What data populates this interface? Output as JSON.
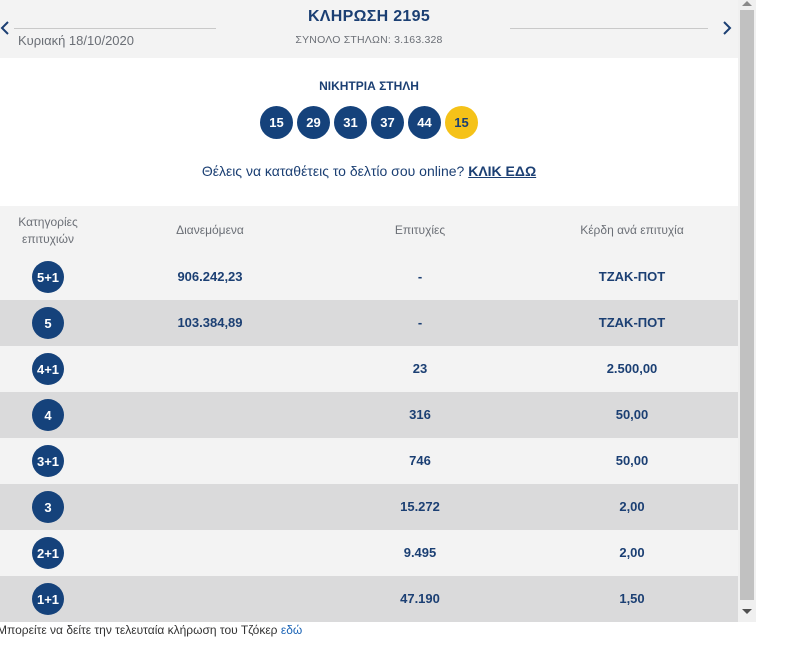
{
  "header": {
    "title": "ΚΛΗΡΩΣΗ 2195",
    "date": "Κυριακή 18/10/2020",
    "total_columns": "ΣΥΝΟΛΟ ΣΤΗΛΩΝ: 3.163.328"
  },
  "winning": {
    "label": "ΝΙΚΗΤΡΙΑ ΣΤΗΛΗ",
    "numbers": [
      "15",
      "29",
      "31",
      "37",
      "44"
    ],
    "joker": "15"
  },
  "online": {
    "prompt": "Θέλεις να καταθέτεις το δελτίο σου online?",
    "link": "ΚΛΙΚ ΕΔΩ"
  },
  "table": {
    "headers": {
      "category_line1": "Κατηγορίες",
      "category_line2": "επιτυχιών",
      "distributed": "Διανεμόμενα",
      "winners": "Επιτυχίες",
      "prize": "Κέρδη ανά επιτυχία"
    },
    "rows": [
      {
        "category": "5+1",
        "distributed": "906.242,23",
        "winners": "-",
        "prize": "ΤΖΑΚ-ΠΟΤ"
      },
      {
        "category": "5",
        "distributed": "103.384,89",
        "winners": "-",
        "prize": "ΤΖΑΚ-ΠΟΤ"
      },
      {
        "category": "4+1",
        "distributed": "",
        "winners": "23",
        "prize": "2.500,00"
      },
      {
        "category": "4",
        "distributed": "",
        "winners": "316",
        "prize": "50,00"
      },
      {
        "category": "3+1",
        "distributed": "",
        "winners": "746",
        "prize": "50,00"
      },
      {
        "category": "3",
        "distributed": "",
        "winners": "15.272",
        "prize": "2,00"
      },
      {
        "category": "2+1",
        "distributed": "",
        "winners": "9.495",
        "prize": "2,00"
      },
      {
        "category": "1+1",
        "distributed": "",
        "winners": "47.190",
        "prize": "1,50"
      }
    ]
  },
  "footer": {
    "text": "Μπορείτε να δείτε την τελευταία κλήρωση του Τζόκερ ",
    "link": "εδώ"
  },
  "colors": {
    "navy": "#15427b",
    "joker_yellow": "#f5c218",
    "row_light": "#f3f3f3",
    "row_dark": "#dadadb",
    "link_blue": "#1a63b5"
  }
}
